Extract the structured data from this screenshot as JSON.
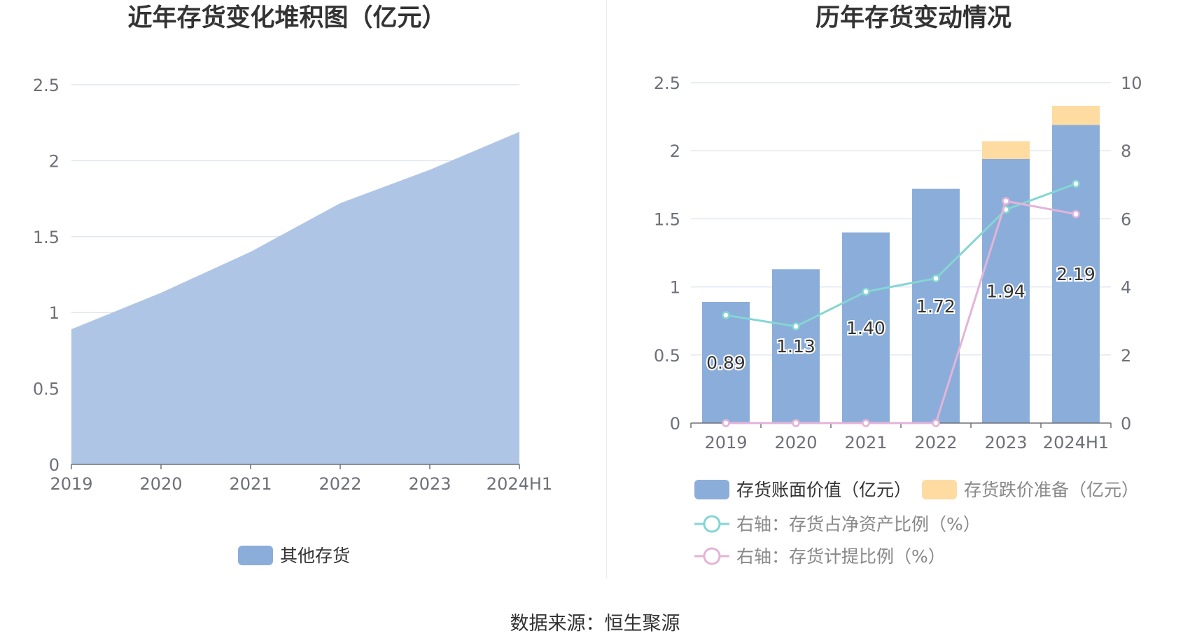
{
  "source_text": "数据来源：恒生聚源",
  "chart_data": [
    {
      "type": "area",
      "title": "近年存货变化堆积图（亿元）",
      "categories": [
        "2019",
        "2020",
        "2021",
        "2022",
        "2023",
        "2024H1"
      ],
      "series": [
        {
          "name": "其他存货",
          "values": [
            0.89,
            1.13,
            1.4,
            1.72,
            1.94,
            2.19
          ],
          "color": "#aec5e6"
        }
      ],
      "y_ticks": [
        "0",
        "0.5",
        "1",
        "1.5",
        "2",
        "2.5"
      ],
      "ylim": [
        0,
        2.5
      ],
      "grid": true,
      "legend": "bottom-center",
      "legend_color": "#8badda"
    },
    {
      "type": "bar",
      "title": "历年存货变动情况",
      "categories": [
        "2019",
        "2020",
        "2021",
        "2022",
        "2023",
        "2024H1"
      ],
      "series": [
        {
          "name": "存货账面价值（亿元）",
          "kind": "bar",
          "stack": "total",
          "axis": "left",
          "color": "#8badda",
          "values": [
            0.89,
            1.13,
            1.4,
            1.72,
            1.94,
            2.19
          ],
          "labels": [
            "0.89",
            "1.13",
            "1.40",
            "1.72",
            "1.94",
            "2.19"
          ]
        },
        {
          "name": "存货跌价准备（亿元）",
          "kind": "bar",
          "stack": "total",
          "axis": "left",
          "color": "#fddba1",
          "values": [
            0,
            0,
            0,
            0,
            0.13,
            0.14
          ]
        },
        {
          "name": "右轴：存货占净资产比例（%）",
          "kind": "line",
          "axis": "right",
          "color": "#84d6d3",
          "values": [
            3.17,
            2.84,
            3.86,
            4.25,
            6.27,
            7.03
          ]
        },
        {
          "name": "右轴：存货计提比例（%）",
          "kind": "line",
          "axis": "right",
          "color": "#e3b4d9",
          "values": [
            0,
            0,
            0,
            0,
            6.52,
            6.14
          ]
        }
      ],
      "y_ticks_left": [
        "0",
        "0.5",
        "1",
        "1.5",
        "2",
        "2.5"
      ],
      "ylim_left": [
        0,
        2.5
      ],
      "y_ticks_right": [
        "0",
        "2",
        "4",
        "6",
        "8",
        "10"
      ],
      "ylim_right": [
        0,
        10
      ],
      "grid": true,
      "legend": "bottom-left"
    }
  ]
}
